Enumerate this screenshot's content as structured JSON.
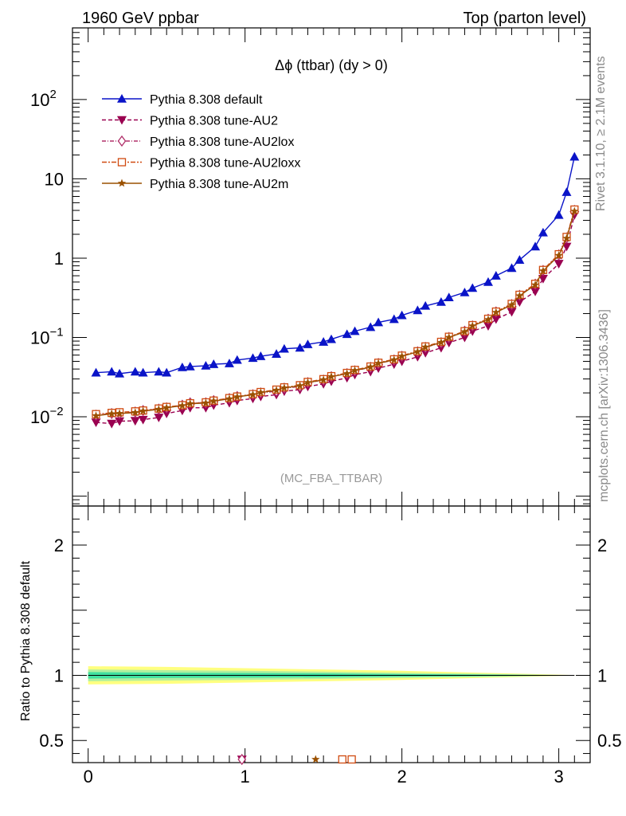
{
  "header": {
    "left": "1960 GeV ppbar",
    "right": "Top (parton level)"
  },
  "side": {
    "rivet": "Rivet 3.1.10, ≥ 2.1M events",
    "mcplots": "mcplots.cern.ch [arXiv:1306.3436]"
  },
  "chart_data": {
    "type": "line",
    "title": "Δϕ (ttbar) (dy > 0)",
    "analysis_label": "(MC_FBA_TTBAR)",
    "ylabel_ratio": "Ratio to Pythia 8.308 default",
    "xlim": [
      -0.1,
      3.2
    ],
    "ylim_main_log": [
      0.00075,
      800
    ],
    "ylim_ratio": [
      0.33,
      2.3
    ],
    "y_log_scale": true,
    "x_ticks": [
      "0",
      "1",
      "2",
      "3"
    ],
    "y_ticks_main": [
      {
        "value": 0.01,
        "base": "10",
        "exp": "−2"
      },
      {
        "value": 0.1,
        "base": "10",
        "exp": "−1"
      },
      {
        "value": 1,
        "base": "1",
        "exp": ""
      },
      {
        "value": 10,
        "base": "10",
        "exp": ""
      },
      {
        "value": 100,
        "base": "10",
        "exp": "2"
      }
    ],
    "y_ticks_ratio": [
      "0.5",
      "1",
      "2"
    ],
    "x": [
      0.05,
      0.15,
      0.2,
      0.3,
      0.35,
      0.45,
      0.5,
      0.6,
      0.65,
      0.75,
      0.8,
      0.9,
      0.95,
      1.05,
      1.1,
      1.2,
      1.25,
      1.35,
      1.4,
      1.5,
      1.55,
      1.65,
      1.7,
      1.8,
      1.85,
      1.95,
      2.0,
      2.1,
      2.15,
      2.25,
      2.3,
      2.4,
      2.45,
      2.55,
      2.6,
      2.7,
      2.75,
      2.85,
      2.9,
      3.0,
      3.05,
      3.1
    ],
    "legend_position": "top-left",
    "series": [
      {
        "name": "Pythia 8.308 default",
        "color": "#0a14c8",
        "marker": "triangle-up",
        "dash": "solid",
        "values": [
          0.036,
          0.037,
          0.035,
          0.037,
          0.036,
          0.037,
          0.036,
          0.042,
          0.043,
          0.044,
          0.046,
          0.047,
          0.052,
          0.055,
          0.058,
          0.062,
          0.072,
          0.074,
          0.082,
          0.088,
          0.095,
          0.11,
          0.12,
          0.135,
          0.155,
          0.17,
          0.19,
          0.22,
          0.25,
          0.28,
          0.32,
          0.37,
          0.42,
          0.5,
          0.6,
          0.75,
          0.95,
          1.4,
          2.1,
          3.5,
          6.8,
          19
        ]
      },
      {
        "name": "Pythia 8.308 tune-AU2",
        "color": "#9a0050",
        "marker": "triangle-down",
        "dash": "dashed",
        "values": [
          0.0085,
          0.0082,
          0.0088,
          0.0089,
          0.0092,
          0.0098,
          0.011,
          0.012,
          0.013,
          0.013,
          0.014,
          0.015,
          0.016,
          0.017,
          0.018,
          0.019,
          0.021,
          0.022,
          0.024,
          0.026,
          0.028,
          0.031,
          0.034,
          0.037,
          0.041,
          0.046,
          0.05,
          0.057,
          0.064,
          0.074,
          0.086,
          0.1,
          0.12,
          0.14,
          0.17,
          0.21,
          0.28,
          0.38,
          0.55,
          0.85,
          1.4,
          3.5
        ]
      },
      {
        "name": "Pythia 8.308 tune-AU2lox",
        "color": "#b0306a",
        "marker": "diamond-open",
        "dash": "dashdot",
        "values": [
          0.0105,
          0.011,
          0.011,
          0.0115,
          0.012,
          0.0125,
          0.013,
          0.014,
          0.015,
          0.015,
          0.016,
          0.017,
          0.018,
          0.019,
          0.02,
          0.021,
          0.023,
          0.024,
          0.027,
          0.029,
          0.032,
          0.035,
          0.038,
          0.042,
          0.047,
          0.052,
          0.058,
          0.066,
          0.075,
          0.086,
          0.1,
          0.12,
          0.14,
          0.17,
          0.21,
          0.26,
          0.34,
          0.47,
          0.7,
          1.1,
          1.8,
          4.0
        ]
      },
      {
        "name": "Pythia 8.308 tune-AU2loxx",
        "color": "#d04a10",
        "marker": "square-open",
        "dash": "dashdot2",
        "values": [
          0.0108,
          0.0112,
          0.0114,
          0.0117,
          0.012,
          0.0127,
          0.0133,
          0.014,
          0.0148,
          0.0152,
          0.016,
          0.0172,
          0.018,
          0.0193,
          0.0205,
          0.022,
          0.0235,
          0.025,
          0.0275,
          0.0298,
          0.0325,
          0.0357,
          0.039,
          0.043,
          0.048,
          0.053,
          0.059,
          0.067,
          0.077,
          0.088,
          0.102,
          0.12,
          0.143,
          0.172,
          0.212,
          0.265,
          0.345,
          0.475,
          0.71,
          1.12,
          1.85,
          4.1
        ]
      },
      {
        "name": "Pythia 8.308 tune-AU2m",
        "color": "#9a5000",
        "marker": "star",
        "dash": "solid",
        "values": [
          0.0103,
          0.0109,
          0.011,
          0.0113,
          0.0118,
          0.0124,
          0.013,
          0.0138,
          0.0146,
          0.0149,
          0.0158,
          0.0168,
          0.0178,
          0.019,
          0.0202,
          0.0216,
          0.0231,
          0.0246,
          0.027,
          0.0292,
          0.032,
          0.035,
          0.0383,
          0.0423,
          0.0472,
          0.0522,
          0.058,
          0.066,
          0.0755,
          0.0865,
          0.1,
          0.118,
          0.14,
          0.168,
          0.207,
          0.258,
          0.335,
          0.46,
          0.69,
          1.08,
          1.78,
          3.9
        ]
      }
    ],
    "ratio_band": {
      "color_outer": "#ffff80",
      "color_mid": "#b0f0a0",
      "color_inner": "#40e0a0",
      "x": [
        0.0,
        0.5,
        1.0,
        1.5,
        2.0,
        2.5,
        3.0,
        3.1
      ],
      "outer_hi": [
        1.07,
        1.065,
        1.055,
        1.045,
        1.035,
        1.02,
        1.005,
        1.002
      ],
      "outer_lo": [
        0.93,
        0.935,
        0.945,
        0.955,
        0.965,
        0.98,
        0.995,
        0.998
      ],
      "mid_hi": [
        1.045,
        1.04,
        1.035,
        1.028,
        1.02,
        1.012,
        1.003,
        1.001
      ],
      "mid_lo": [
        0.955,
        0.96,
        0.965,
        0.972,
        0.98,
        0.988,
        0.997,
        0.999
      ],
      "inner_hi": [
        1.025,
        1.02,
        1.018,
        1.015,
        1.01,
        1.006,
        1.002,
        1.0
      ],
      "inner_lo": [
        0.975,
        0.98,
        0.982,
        0.985,
        0.99,
        0.994,
        0.998,
        1.0
      ]
    },
    "ratio_offscale_markers": [
      {
        "x": 0.98,
        "marker": "triangle-down",
        "color": "#9a0050"
      },
      {
        "x": 0.98,
        "marker": "diamond-open",
        "color": "#b0306a"
      },
      {
        "x": 1.45,
        "marker": "star",
        "color": "#9a5000"
      },
      {
        "x": 1.62,
        "marker": "square-open",
        "color": "#d04a10"
      },
      {
        "x": 1.68,
        "marker": "square-open",
        "color": "#d04a10"
      }
    ]
  }
}
